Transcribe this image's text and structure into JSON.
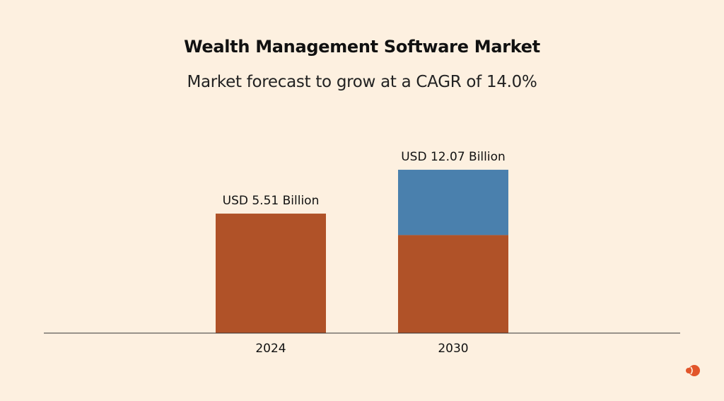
{
  "chart_data": {
    "type": "bar",
    "title": "Wealth Management Software Market",
    "subtitle": "Market forecast to grow at a CAGR of 14.0%",
    "categories": [
      "2024",
      "2030"
    ],
    "values": [
      5.51,
      12.07
    ],
    "data_labels": [
      "USD 5.51 Billion",
      "USD 12.07 Billion"
    ],
    "unit": "USD Billion",
    "xlabel": "",
    "ylabel": "",
    "grid": false,
    "legend": "none",
    "colors": {
      "base": "#b05228",
      "growth": "#4a80ad",
      "axis": "#333333",
      "background": "#fdf0e0"
    }
  },
  "logo": {
    "name": "brand-logo-icon",
    "color": "#e2552a"
  }
}
